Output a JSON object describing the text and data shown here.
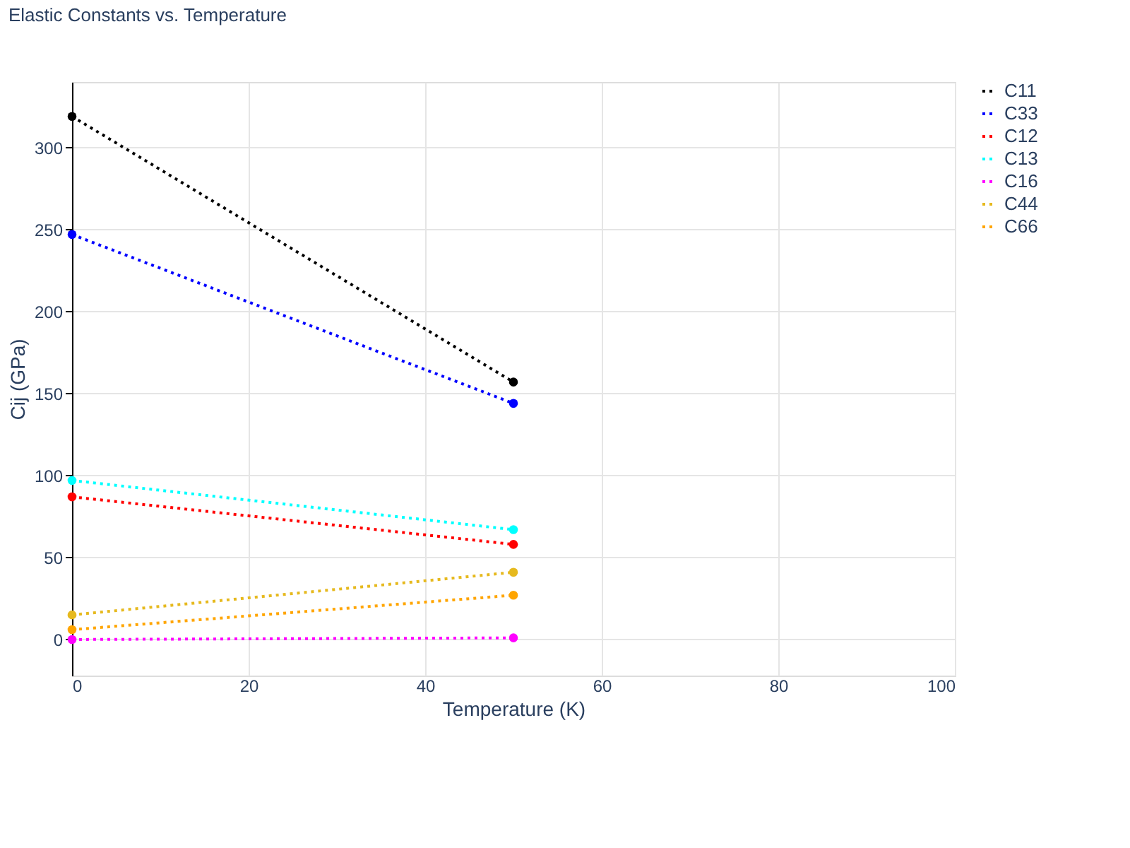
{
  "chart_data": {
    "type": "line",
    "title": "Elastic Constants vs. Temperature",
    "xlabel": "Temperature (K)",
    "ylabel": "Cij (GPa)",
    "x": [
      0,
      50
    ],
    "series": [
      {
        "name": "C11",
        "color": "#000000",
        "values": [
          319,
          157
        ]
      },
      {
        "name": "C33",
        "color": "#0000ff",
        "values": [
          247,
          144
        ]
      },
      {
        "name": "C12",
        "color": "#ff0000",
        "values": [
          87,
          58
        ]
      },
      {
        "name": "C13",
        "color": "#00ffff",
        "values": [
          97,
          67
        ]
      },
      {
        "name": "C16",
        "color": "#ff00ff",
        "values": [
          0,
          1
        ]
      },
      {
        "name": "C44",
        "color": "#e6b91e",
        "values": [
          15,
          41
        ]
      },
      {
        "name": "C66",
        "color": "#ffa500",
        "values": [
          6,
          27
        ]
      }
    ],
    "xlim": [
      0,
      100
    ],
    "xticks": [
      0,
      20,
      40,
      60,
      80,
      100
    ],
    "ylim": [
      -22,
      340
    ],
    "yticks": [
      0,
      50,
      100,
      150,
      200,
      250,
      300
    ],
    "grid": true,
    "legend": "top right",
    "marker": "circle",
    "line_style": "dotted"
  }
}
